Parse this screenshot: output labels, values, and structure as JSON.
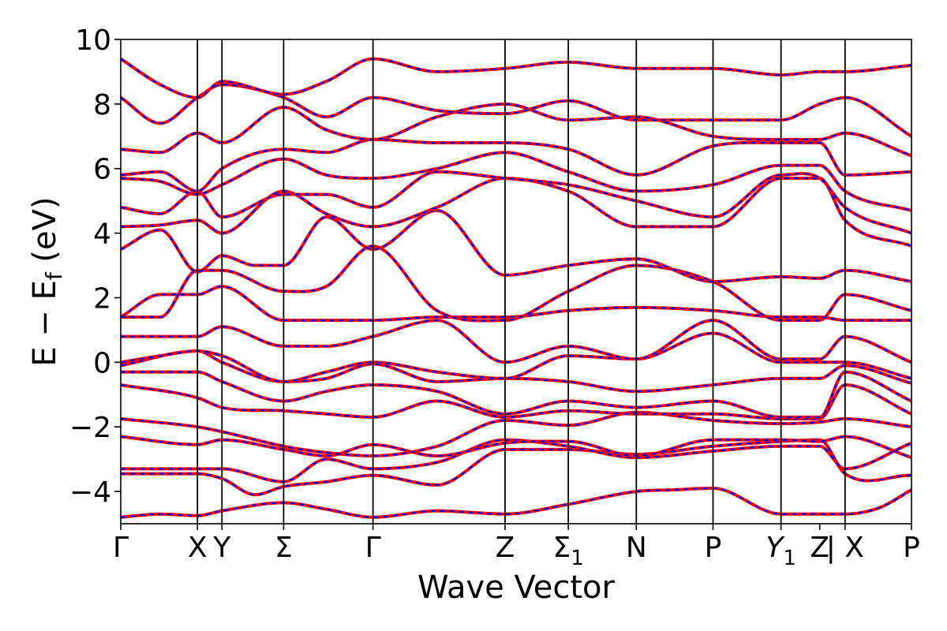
{
  "chart_data": {
    "type": "line",
    "title": "",
    "xlabel": "Wave Vector",
    "ylabel": "E − E_f (eV)",
    "ylabel_parts": {
      "main": "E − E",
      "sub": "f",
      "unit": " (eV)"
    },
    "ylim": [
      -5,
      10
    ],
    "yticks": [
      {
        "value": -4,
        "label": "−4"
      },
      {
        "value": -2,
        "label": "−2"
      },
      {
        "value": 0,
        "label": "0"
      },
      {
        "value": 2,
        "label": "2"
      },
      {
        "value": 4,
        "label": "4"
      },
      {
        "value": 6,
        "label": "6"
      },
      {
        "value": 8,
        "label": "8"
      },
      {
        "value": 10,
        "label": "10"
      }
    ],
    "xlim": [
      0,
      1
    ],
    "kpoints": [
      {
        "pos": 0.0,
        "label": "Γ"
      },
      {
        "pos": 0.097,
        "label": "X"
      },
      {
        "pos": 0.128,
        "label": "Y"
      },
      {
        "pos": 0.206,
        "label": "Σ"
      },
      {
        "pos": 0.319,
        "label": "Γ"
      },
      {
        "pos": 0.486,
        "label": "Z"
      },
      {
        "pos": 0.566,
        "label": "Σ",
        "sub": "1"
      },
      {
        "pos": 0.652,
        "label": "N"
      },
      {
        "pos": 0.749,
        "label": "P"
      },
      {
        "pos": 0.835,
        "label": "Y",
        "sub": "1",
        "italic": true
      },
      {
        "pos": 0.884,
        "label": "Z"
      },
      {
        "pos": 0.916,
        "label": "| X"
      },
      {
        "pos": 1.0,
        "label": "P"
      }
    ],
    "vlines": [
      0.097,
      0.128,
      0.206,
      0.319,
      0.486,
      0.566,
      0.652,
      0.749,
      0.835,
      0.916
    ],
    "series": [
      {
        "color": "#ff0000",
        "style": "solid"
      },
      {
        "color": "#0000ff",
        "style": "dashed"
      }
    ],
    "bands": [
      {
        "x": [
          0.0,
          0.05,
          0.097,
          0.128,
          0.206,
          0.26,
          0.319,
          0.4,
          0.486,
          0.566,
          0.652,
          0.7,
          0.749,
          0.835,
          0.884,
          0.916,
          0.96,
          1.0
        ],
        "y": [
          -4.8,
          -4.7,
          -4.75,
          -4.6,
          -4.35,
          -4.55,
          -4.8,
          -4.6,
          -4.7,
          -4.4,
          -4.0,
          -3.95,
          -3.9,
          -4.7,
          -4.7,
          -4.7,
          -4.5,
          -3.95
        ]
      },
      {
        "x": [
          0.0,
          0.05,
          0.097,
          0.128,
          0.17,
          0.206,
          0.26,
          0.319,
          0.4,
          0.486,
          0.566,
          0.652,
          0.749,
          0.835,
          0.884,
          0.916,
          1.0
        ],
        "y": [
          -3.45,
          -3.45,
          -3.45,
          -3.6,
          -4.1,
          -3.85,
          -3.7,
          -3.5,
          -3.8,
          -2.7,
          -2.7,
          -2.85,
          -2.6,
          -2.45,
          -2.4,
          -3.45,
          -3.5
        ]
      },
      {
        "x": [
          0.0,
          0.097,
          0.128,
          0.206,
          0.26,
          0.319,
          0.4,
          0.486,
          0.566,
          0.652,
          0.749,
          0.835,
          0.884,
          0.916,
          1.0
        ],
        "y": [
          -3.3,
          -3.3,
          -3.3,
          -3.7,
          -3.0,
          -3.3,
          -3.1,
          -2.4,
          -2.6,
          -2.95,
          -2.75,
          -2.6,
          -2.6,
          -3.3,
          -2.5
        ]
      },
      {
        "x": [
          0.0,
          0.097,
          0.128,
          0.206,
          0.26,
          0.319,
          0.4,
          0.486,
          0.566,
          0.652,
          0.749,
          0.835,
          0.884,
          0.916,
          1.0
        ],
        "y": [
          -2.3,
          -2.55,
          -2.4,
          -2.7,
          -2.9,
          -2.55,
          -2.9,
          -2.5,
          -2.45,
          -2.9,
          -2.4,
          -2.4,
          -2.45,
          -2.3,
          -2.95
        ]
      },
      {
        "x": [
          0.0,
          0.097,
          0.128,
          0.206,
          0.26,
          0.319,
          0.4,
          0.486,
          0.566,
          0.652,
          0.749,
          0.835,
          0.884,
          0.916,
          1.0
        ],
        "y": [
          -1.75,
          -2.0,
          -2.15,
          -2.6,
          -2.8,
          -2.9,
          -2.6,
          -1.8,
          -1.95,
          -1.55,
          -1.8,
          -1.9,
          -1.85,
          -1.75,
          -2.0
        ]
      },
      {
        "x": [
          0.0,
          0.097,
          0.128,
          0.206,
          0.26,
          0.319,
          0.4,
          0.486,
          0.566,
          0.652,
          0.749,
          0.835,
          0.884,
          0.916,
          1.0
        ],
        "y": [
          -0.7,
          -1.1,
          -1.4,
          -1.5,
          -1.6,
          -1.7,
          -1.2,
          -1.7,
          -1.5,
          -1.6,
          -1.6,
          -1.75,
          -1.75,
          -0.7,
          -1.6
        ]
      },
      {
        "x": [
          0.0,
          0.097,
          0.128,
          0.206,
          0.26,
          0.319,
          0.4,
          0.486,
          0.566,
          0.652,
          0.749,
          0.835,
          0.884,
          0.916,
          1.0
        ],
        "y": [
          -0.3,
          -0.3,
          -0.6,
          -1.2,
          -0.9,
          -0.7,
          -0.9,
          -1.6,
          -1.2,
          -1.4,
          -1.2,
          -1.7,
          -1.7,
          -0.3,
          -1.2
        ]
      },
      {
        "x": [
          0.0,
          0.097,
          0.128,
          0.206,
          0.26,
          0.319,
          0.4,
          0.486,
          0.566,
          0.652,
          0.749,
          0.835,
          0.884,
          0.916,
          1.0
        ],
        "y": [
          -0.1,
          0.35,
          0.0,
          -0.6,
          -0.5,
          -0.05,
          -0.6,
          -0.5,
          -0.6,
          -0.9,
          -0.7,
          -0.5,
          -0.5,
          -0.1,
          -0.65
        ]
      },
      {
        "x": [
          0.0,
          0.05,
          0.097,
          0.128,
          0.206,
          0.26,
          0.319,
          0.4,
          0.486,
          0.566,
          0.652,
          0.749,
          0.835,
          0.884,
          0.916,
          1.0
        ],
        "y": [
          0.0,
          0.2,
          0.35,
          0.2,
          -0.6,
          -0.3,
          0.0,
          -0.3,
          -0.5,
          0.2,
          0.1,
          0.9,
          0.0,
          0.0,
          0.0,
          -0.5
        ]
      },
      {
        "x": [
          0.0,
          0.097,
          0.128,
          0.206,
          0.26,
          0.319,
          0.4,
          0.486,
          0.566,
          0.652,
          0.749,
          0.835,
          0.884,
          0.916,
          1.0
        ],
        "y": [
          0.8,
          0.8,
          1.1,
          0.5,
          0.5,
          0.8,
          1.3,
          0.0,
          0.5,
          0.1,
          1.3,
          0.1,
          0.1,
          0.8,
          0.0
        ]
      },
      {
        "x": [
          0.0,
          0.05,
          0.097,
          0.128,
          0.206,
          0.26,
          0.319,
          0.4,
          0.486,
          0.566,
          0.652,
          0.749,
          0.835,
          0.884,
          0.916,
          1.0
        ],
        "y": [
          1.4,
          2.1,
          2.1,
          2.35,
          1.3,
          1.3,
          1.3,
          1.4,
          1.4,
          1.6,
          1.7,
          1.6,
          1.4,
          1.4,
          1.3,
          1.3
        ]
      },
      {
        "x": [
          0.0,
          0.05,
          0.097,
          0.128,
          0.206,
          0.26,
          0.319,
          0.4,
          0.486,
          0.566,
          0.652,
          0.749,
          0.835,
          0.884,
          0.916,
          1.0
        ],
        "y": [
          1.4,
          1.4,
          2.85,
          2.85,
          2.2,
          2.35,
          3.6,
          1.6,
          1.3,
          2.2,
          3.0,
          2.5,
          1.3,
          1.3,
          2.1,
          1.6
        ]
      },
      {
        "x": [
          0.0,
          0.05,
          0.097,
          0.128,
          0.17,
          0.206,
          0.26,
          0.319,
          0.4,
          0.486,
          0.566,
          0.652,
          0.749,
          0.835,
          0.884,
          0.916,
          1.0
        ],
        "y": [
          3.5,
          4.1,
          2.8,
          3.3,
          3.0,
          3.0,
          4.5,
          3.5,
          4.7,
          2.7,
          3.0,
          3.2,
          2.5,
          2.65,
          2.6,
          2.85,
          2.5
        ]
      },
      {
        "x": [
          0.0,
          0.05,
          0.097,
          0.128,
          0.206,
          0.26,
          0.319,
          0.4,
          0.486,
          0.566,
          0.652,
          0.749,
          0.835,
          0.884,
          0.916,
          1.0
        ],
        "y": [
          4.2,
          4.25,
          4.4,
          4.0,
          5.3,
          4.6,
          4.2,
          4.8,
          5.7,
          5.3,
          4.2,
          4.2,
          5.7,
          5.7,
          4.4,
          3.6
        ]
      },
      {
        "x": [
          0.0,
          0.05,
          0.097,
          0.128,
          0.206,
          0.26,
          0.319,
          0.4,
          0.486,
          0.566,
          0.652,
          0.749,
          0.835,
          0.884,
          0.916,
          1.0
        ],
        "y": [
          4.8,
          4.6,
          5.3,
          4.5,
          5.2,
          5.2,
          4.8,
          5.9,
          5.7,
          5.5,
          5.0,
          4.5,
          5.8,
          5.7,
          4.8,
          4.0
        ]
      },
      {
        "x": [
          0.0,
          0.05,
          0.097,
          0.128,
          0.206,
          0.26,
          0.319,
          0.4,
          0.486,
          0.566,
          0.652,
          0.749,
          0.835,
          0.884,
          0.916,
          1.0
        ],
        "y": [
          5.7,
          5.6,
          5.2,
          5.5,
          6.3,
          5.8,
          5.7,
          6.0,
          6.5,
          5.9,
          5.3,
          5.5,
          6.1,
          6.1,
          5.3,
          4.7
        ]
      },
      {
        "x": [
          0.0,
          0.05,
          0.097,
          0.128,
          0.206,
          0.26,
          0.319,
          0.4,
          0.486,
          0.566,
          0.652,
          0.749,
          0.835,
          0.884,
          0.916,
          1.0
        ],
        "y": [
          5.8,
          5.9,
          5.3,
          6.0,
          6.6,
          6.5,
          6.9,
          6.8,
          6.8,
          6.6,
          5.8,
          6.7,
          6.8,
          6.8,
          5.8,
          5.9
        ]
      },
      {
        "x": [
          0.0,
          0.05,
          0.097,
          0.128,
          0.206,
          0.26,
          0.319,
          0.4,
          0.486,
          0.566,
          0.652,
          0.749,
          0.835,
          0.884,
          0.916,
          1.0
        ],
        "y": [
          6.6,
          6.5,
          7.1,
          6.8,
          7.9,
          7.2,
          6.9,
          7.6,
          8.0,
          7.5,
          7.6,
          7.0,
          6.9,
          6.9,
          7.1,
          6.4
        ]
      },
      {
        "x": [
          0.0,
          0.05,
          0.097,
          0.128,
          0.206,
          0.26,
          0.319,
          0.4,
          0.486,
          0.566,
          0.652,
          0.749,
          0.835,
          0.884,
          0.916,
          1.0
        ],
        "y": [
          8.2,
          7.4,
          8.2,
          8.6,
          8.2,
          7.6,
          8.2,
          7.8,
          7.7,
          8.1,
          7.5,
          7.5,
          7.5,
          8.0,
          8.2,
          7.0
        ]
      },
      {
        "x": [
          0.0,
          0.05,
          0.097,
          0.128,
          0.206,
          0.26,
          0.319,
          0.4,
          0.486,
          0.566,
          0.652,
          0.749,
          0.835,
          0.884,
          0.916,
          1.0
        ],
        "y": [
          9.4,
          8.6,
          8.2,
          8.7,
          8.3,
          8.7,
          9.4,
          9.0,
          9.1,
          9.3,
          9.1,
          9.1,
          8.9,
          9.0,
          9.0,
          9.2
        ]
      }
    ]
  }
}
